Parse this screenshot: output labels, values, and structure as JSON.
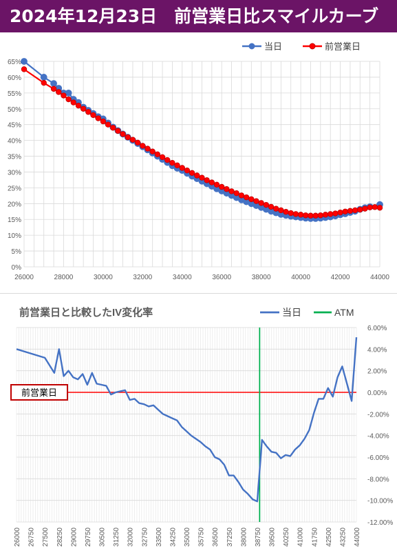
{
  "header": {
    "title": "2024年12月23日　前営業日比スマイルカーブ"
  },
  "colors": {
    "title_bg": "#6b1466",
    "today": "#4472c4",
    "prev": "#ff0000",
    "prev_marker_edge": "#c00000",
    "atm": "#00b050",
    "grid": "#d9d9d9"
  },
  "chart_data": [
    {
      "type": "line",
      "legend": [
        "当日",
        "前営業日"
      ],
      "legend_position": "top-right",
      "xlim": [
        26000,
        44000
      ],
      "ylim": [
        0,
        65
      ],
      "x_ticks": [
        "26000",
        "28000",
        "30000",
        "32000",
        "34000",
        "36000",
        "38000",
        "40000",
        "42000",
        "44000"
      ],
      "y_ticks": [
        "0%",
        "5%",
        "10%",
        "15%",
        "20%",
        "25%",
        "30%",
        "35%",
        "40%",
        "45%",
        "50%",
        "55%",
        "60%",
        "65%"
      ],
      "grid": true,
      "series": [
        {
          "name": "当日",
          "points": [
            [
              26000,
              65.0
            ],
            [
              27000,
              60.0
            ],
            [
              27500,
              58.0
            ],
            [
              27750,
              56.5
            ],
            [
              28000,
              55.0
            ],
            [
              28250,
              55.0
            ],
            [
              28500,
              53.0
            ],
            [
              28750,
              52.0
            ],
            [
              29000,
              50.5
            ],
            [
              29250,
              49.5
            ],
            [
              29500,
              48.5
            ],
            [
              29750,
              47.5
            ],
            [
              30000,
              46.8
            ],
            [
              30250,
              45.5
            ],
            [
              30500,
              44.2
            ],
            [
              30750,
              43.1
            ],
            [
              31000,
              42.0
            ],
            [
              31250,
              41.0
            ],
            [
              31500,
              40.0
            ],
            [
              31750,
              39.0
            ],
            [
              32000,
              38.0
            ],
            [
              32250,
              37.0
            ],
            [
              32500,
              36.0
            ],
            [
              32750,
              35.0
            ],
            [
              33000,
              34.0
            ],
            [
              33250,
              33.0
            ],
            [
              33500,
              32.0
            ],
            [
              33750,
              31.2
            ],
            [
              34000,
              30.5
            ],
            [
              34250,
              29.6
            ],
            [
              34500,
              28.7
            ],
            [
              34750,
              27.9
            ],
            [
              35000,
              27.1
            ],
            [
              35250,
              26.3
            ],
            [
              35500,
              25.5
            ],
            [
              35750,
              24.7
            ],
            [
              36000,
              24.0
            ],
            [
              36250,
              23.3
            ],
            [
              36500,
              22.6
            ],
            [
              36750,
              21.9
            ],
            [
              37000,
              21.2
            ],
            [
              37250,
              20.6
            ],
            [
              37500,
              20.0
            ],
            [
              37750,
              19.4
            ],
            [
              38000,
              18.8
            ],
            [
              38250,
              18.2
            ],
            [
              38500,
              17.6
            ],
            [
              38750,
              17.1
            ],
            [
              39000,
              16.6
            ],
            [
              39250,
              16.3
            ],
            [
              39500,
              16.0
            ],
            [
              39750,
              15.8
            ],
            [
              40000,
              15.6
            ],
            [
              40250,
              15.4
            ],
            [
              40500,
              15.3
            ],
            [
              40750,
              15.3
            ],
            [
              41000,
              15.4
            ],
            [
              41250,
              15.6
            ],
            [
              41500,
              15.8
            ],
            [
              41750,
              16.1
            ],
            [
              42000,
              16.5
            ],
            [
              42250,
              16.8
            ],
            [
              42500,
              17.2
            ],
            [
              42750,
              17.6
            ],
            [
              43000,
              18.2
            ],
            [
              43250,
              18.7
            ],
            [
              43500,
              19.0
            ],
            [
              44000,
              19.7
            ]
          ]
        },
        {
          "name": "前営業日",
          "points": [
            [
              26000,
              62.5
            ],
            [
              27000,
              58.2
            ],
            [
              27500,
              56.3
            ],
            [
              27750,
              55.3
            ],
            [
              28000,
              54.2
            ],
            [
              28250,
              53.0
            ],
            [
              28500,
              52.0
            ],
            [
              28750,
              51.0
            ],
            [
              29000,
              50.0
            ],
            [
              29250,
              49.0
            ],
            [
              29500,
              48.0
            ],
            [
              29750,
              47.0
            ],
            [
              30000,
              46.0
            ],
            [
              30250,
              45.0
            ],
            [
              30500,
              44.0
            ],
            [
              30750,
              43.0
            ],
            [
              31000,
              42.0
            ],
            [
              31250,
              41.0
            ],
            [
              31500,
              40.2
            ],
            [
              31750,
              39.3
            ],
            [
              32000,
              38.3
            ],
            [
              32250,
              37.4
            ],
            [
              32500,
              36.5
            ],
            [
              32750,
              35.6
            ],
            [
              33000,
              34.7
            ],
            [
              33250,
              33.8
            ],
            [
              33500,
              32.9
            ],
            [
              33750,
              32.1
            ],
            [
              34000,
              31.3
            ],
            [
              34250,
              30.5
            ],
            [
              34500,
              29.7
            ],
            [
              34750,
              28.9
            ],
            [
              35000,
              28.2
            ],
            [
              35250,
              27.4
            ],
            [
              35500,
              26.7
            ],
            [
              35750,
              26.0
            ],
            [
              36000,
              25.3
            ],
            [
              36250,
              24.6
            ],
            [
              36500,
              23.9
            ],
            [
              36750,
              23.3
            ],
            [
              37000,
              22.6
            ],
            [
              37250,
              22.0
            ],
            [
              37500,
              21.4
            ],
            [
              37750,
              20.8
            ],
            [
              38000,
              20.2
            ],
            [
              38250,
              19.6
            ],
            [
              38500,
              19.0
            ],
            [
              38750,
              18.4
            ],
            [
              39000,
              17.9
            ],
            [
              39250,
              17.4
            ],
            [
              39500,
              17.0
            ],
            [
              39750,
              16.7
            ],
            [
              40000,
              16.5
            ],
            [
              40250,
              16.3
            ],
            [
              40500,
              16.2
            ],
            [
              40750,
              16.2
            ],
            [
              41000,
              16.3
            ],
            [
              41250,
              16.5
            ],
            [
              41500,
              16.7
            ],
            [
              41750,
              16.9
            ],
            [
              42000,
              17.2
            ],
            [
              42250,
              17.5
            ],
            [
              42500,
              17.7
            ],
            [
              42750,
              17.9
            ],
            [
              43000,
              18.1
            ],
            [
              43250,
              18.4
            ],
            [
              43500,
              18.8
            ],
            [
              43750,
              18.9
            ],
            [
              44000,
              18.7
            ]
          ]
        }
      ]
    },
    {
      "type": "line",
      "title": "前営業日と比較したIV変化率",
      "legend": [
        "当日",
        "ATM"
      ],
      "legend_position": "top-right",
      "ylim": [
        -12,
        6
      ],
      "y_ticks": [
        "6.00%",
        "4.00%",
        "2.00%",
        "0.00%",
        "-2.00%",
        "-4.00%",
        "-6.00%",
        "-8.00%",
        "-10.00%",
        "-12.00%"
      ],
      "x_ticks": [
        "26000",
        "26750",
        "27500",
        "28250",
        "29000",
        "29750",
        "30500",
        "31250",
        "32000",
        "32750",
        "33500",
        "34250",
        "35000",
        "35750",
        "36500",
        "37250",
        "38000",
        "38750",
        "39500",
        "40250",
        "41000",
        "41750",
        "42500",
        "43250",
        "44000"
      ],
      "atm_strike": 38875,
      "reference_label": "前営業日",
      "reference_value": 0,
      "series": [
        {
          "name": "当日",
          "points": [
            [
              26000,
              4.0
            ],
            [
              27500,
              3.2
            ],
            [
              28000,
              1.8
            ],
            [
              28250,
              4.0
            ],
            [
              28500,
              1.5
            ],
            [
              28750,
              2.0
            ],
            [
              29000,
              1.4
            ],
            [
              29250,
              1.2
            ],
            [
              29500,
              1.7
            ],
            [
              29750,
              0.7
            ],
            [
              30000,
              1.8
            ],
            [
              30250,
              0.8
            ],
            [
              30500,
              0.7
            ],
            [
              30750,
              0.6
            ],
            [
              31000,
              -0.2
            ],
            [
              31250,
              0.0
            ],
            [
              31500,
              0.1
            ],
            [
              31750,
              0.2
            ],
            [
              32000,
              -0.7
            ],
            [
              32250,
              -0.6
            ],
            [
              32500,
              -1.0
            ],
            [
              32750,
              -1.1
            ],
            [
              33000,
              -1.3
            ],
            [
              33250,
              -1.2
            ],
            [
              33500,
              -1.6
            ],
            [
              33750,
              -2.0
            ],
            [
              34000,
              -2.2
            ],
            [
              34250,
              -2.4
            ],
            [
              34500,
              -2.6
            ],
            [
              34750,
              -3.2
            ],
            [
              35000,
              -3.6
            ],
            [
              35250,
              -4.0
            ],
            [
              35500,
              -4.3
            ],
            [
              35750,
              -4.6
            ],
            [
              36000,
              -5.0
            ],
            [
              36250,
              -5.3
            ],
            [
              36500,
              -6.0
            ],
            [
              36750,
              -6.2
            ],
            [
              37000,
              -6.7
            ],
            [
              37250,
              -7.7
            ],
            [
              37500,
              -7.7
            ],
            [
              37750,
              -8.3
            ],
            [
              38000,
              -9.0
            ],
            [
              38250,
              -9.4
            ],
            [
              38500,
              -9.9
            ],
            [
              38750,
              -10.1
            ],
            [
              39000,
              -4.4
            ],
            [
              39250,
              -5.0
            ],
            [
              39500,
              -5.5
            ],
            [
              39750,
              -5.6
            ],
            [
              40000,
              -6.1
            ],
            [
              40250,
              -5.8
            ],
            [
              40500,
              -5.9
            ],
            [
              40750,
              -5.3
            ],
            [
              41000,
              -4.9
            ],
            [
              41250,
              -4.3
            ],
            [
              41500,
              -3.5
            ],
            [
              41750,
              -1.9
            ],
            [
              42000,
              -0.6
            ],
            [
              42250,
              -0.6
            ],
            [
              42500,
              0.4
            ],
            [
              42750,
              -0.4
            ],
            [
              43000,
              1.4
            ],
            [
              43250,
              2.4
            ],
            [
              43500,
              0.8
            ],
            [
              43750,
              -0.8
            ],
            [
              44000,
              5.1
            ]
          ]
        }
      ]
    }
  ]
}
